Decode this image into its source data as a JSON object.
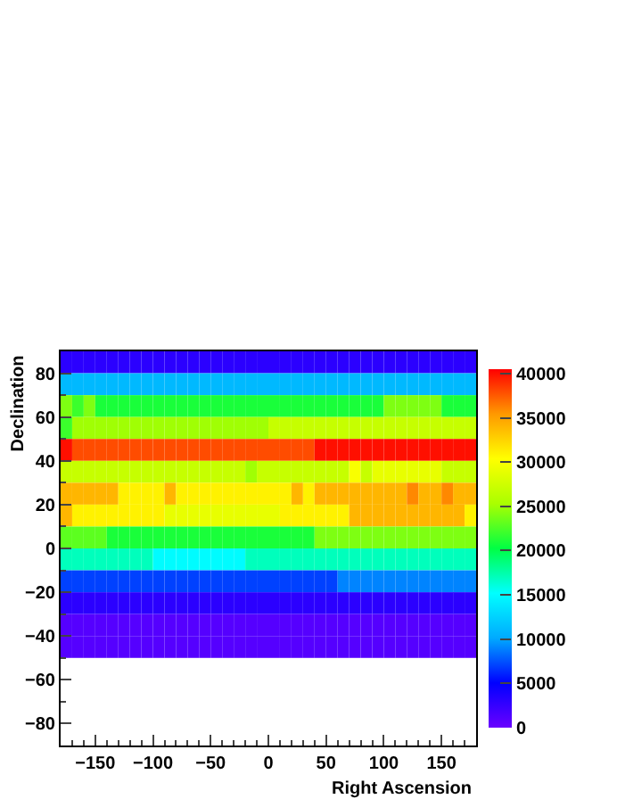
{
  "chart_data": {
    "type": "heatmap",
    "xlabel": "Right Ascension",
    "ylabel": "Declination",
    "x": [
      -175,
      -165,
      -155,
      -145,
      -135,
      -125,
      -115,
      -105,
      -95,
      -85,
      -75,
      -65,
      -55,
      -45,
      -35,
      -25,
      -15,
      -5,
      5,
      15,
      25,
      35,
      45,
      55,
      65,
      75,
      85,
      95,
      105,
      115,
      125,
      135,
      145,
      155,
      165,
      175
    ],
    "y": [
      85,
      75,
      65,
      55,
      45,
      35,
      25,
      15,
      5,
      -5,
      -15,
      -25,
      -35,
      -45
    ],
    "cells": [
      [
        3000,
        3000,
        3000,
        3000,
        3000,
        3000,
        3000,
        3000,
        3000,
        3000,
        3000,
        3000,
        3000,
        3000,
        3000,
        3000,
        3000,
        3000,
        3000,
        3000,
        3000,
        3000,
        3000,
        3000,
        3000,
        3000,
        3000,
        3000,
        3000,
        3000,
        3000,
        3000,
        3000,
        3000,
        3000,
        3000
      ],
      [
        11000,
        11000,
        11000,
        11000,
        11000,
        11000,
        11000,
        11000,
        11000,
        11000,
        11000,
        11000,
        11000,
        11000,
        11000,
        11000,
        11000,
        11000,
        11000,
        11000,
        11000,
        11000,
        11000,
        11000,
        11000,
        11000,
        11000,
        11000,
        11000,
        11000,
        11000,
        11000,
        11000,
        11000,
        11000,
        11000
      ],
      [
        24000,
        22000,
        24000,
        21000,
        21000,
        21000,
        21000,
        21000,
        21000,
        21000,
        21000,
        21000,
        21000,
        21000,
        21000,
        21000,
        21000,
        21000,
        21000,
        21000,
        21000,
        21000,
        21000,
        21000,
        21000,
        21000,
        21000,
        21000,
        24000,
        24000,
        24000,
        24000,
        24000,
        21000,
        21000,
        21000
      ],
      [
        22000,
        25000,
        25000,
        25000,
        25000,
        25000,
        25000,
        25000,
        25000,
        25000,
        25000,
        25000,
        25000,
        25000,
        25000,
        25000,
        25000,
        25000,
        27000,
        27000,
        27000,
        27000,
        27000,
        27000,
        27000,
        27000,
        27000,
        27000,
        27000,
        27000,
        27000,
        27000,
        27000,
        27000,
        27000,
        27000
      ],
      [
        40000,
        38000,
        38000,
        38000,
        38000,
        38000,
        38000,
        38000,
        38000,
        38000,
        38000,
        38000,
        38000,
        38000,
        38000,
        38000,
        38000,
        38000,
        38000,
        38000,
        38000,
        38000,
        40000,
        40000,
        40000,
        40000,
        40000,
        40000,
        40000,
        40000,
        40000,
        40000,
        40000,
        40000,
        40000,
        40000
      ],
      [
        27000,
        27000,
        27000,
        27000,
        27000,
        27000,
        27000,
        27000,
        27000,
        27000,
        27000,
        27000,
        27000,
        27000,
        27000,
        27000,
        25000,
        27000,
        27000,
        27000,
        27000,
        27000,
        27000,
        27000,
        27000,
        30000,
        27000,
        29000,
        29000,
        29000,
        29000,
        29000,
        29000,
        27000,
        27000,
        27000
      ],
      [
        34000,
        34000,
        34000,
        34000,
        34000,
        31000,
        31000,
        31000,
        31000,
        34000,
        31000,
        31000,
        31000,
        31000,
        31000,
        31000,
        31000,
        31000,
        31000,
        31000,
        34000,
        31000,
        34000,
        34000,
        34000,
        34000,
        34000,
        34000,
        34000,
        34000,
        36000,
        34000,
        34000,
        36000,
        34000,
        34000
      ],
      [
        34000,
        31000,
        31000,
        31000,
        31000,
        31000,
        31000,
        31000,
        31000,
        29000,
        29000,
        29000,
        29000,
        29000,
        29000,
        29000,
        29000,
        29000,
        29000,
        31000,
        31000,
        31000,
        31000,
        31000,
        31000,
        34000,
        34000,
        34000,
        34000,
        34000,
        34000,
        34000,
        34000,
        34000,
        34000,
        31000
      ],
      [
        23000,
        23000,
        23000,
        23000,
        21000,
        21000,
        21000,
        21000,
        21000,
        21000,
        21000,
        21000,
        21000,
        21000,
        21000,
        21000,
        21000,
        21000,
        21000,
        21000,
        21000,
        21000,
        24000,
        24000,
        24000,
        24000,
        24000,
        24000,
        24000,
        24000,
        24000,
        24000,
        24000,
        24000,
        24000,
        24000
      ],
      [
        17000,
        17000,
        17000,
        17000,
        17000,
        17000,
        17000,
        17000,
        15000,
        15000,
        15000,
        15000,
        15000,
        15000,
        15000,
        15000,
        17000,
        17000,
        17000,
        17000,
        17000,
        17000,
        17000,
        17000,
        17000,
        17000,
        17000,
        17000,
        17000,
        17000,
        17000,
        17000,
        17000,
        17000,
        17000,
        17000
      ],
      [
        7000,
        7000,
        7000,
        7000,
        7000,
        7000,
        7000,
        7000,
        7000,
        7000,
        7000,
        7000,
        7000,
        7000,
        7000,
        7000,
        7000,
        7000,
        7000,
        7000,
        7000,
        7000,
        7000,
        7000,
        9000,
        9000,
        9000,
        9000,
        9000,
        9000,
        9000,
        9000,
        9000,
        9000,
        9000,
        9000
      ],
      [
        3000,
        3000,
        3000,
        3000,
        3000,
        3000,
        3000,
        3000,
        3000,
        3000,
        3000,
        3000,
        3000,
        3000,
        3000,
        3000,
        3000,
        3000,
        3000,
        3000,
        3000,
        3000,
        3000,
        3000,
        3000,
        3000,
        3000,
        3000,
        3000,
        3000,
        3000,
        3000,
        3000,
        3000,
        3000,
        3000
      ],
      [
        1000,
        1000,
        1000,
        1000,
        1000,
        1000,
        1000,
        1000,
        1000,
        1000,
        1000,
        1000,
        1000,
        1000,
        1000,
        1000,
        1000,
        1000,
        1000,
        1000,
        1000,
        1000,
        1000,
        1000,
        1000,
        1000,
        1000,
        1000,
        1000,
        1000,
        1000,
        1000,
        1000,
        1000,
        1000,
        1000
      ],
      [
        1000,
        1000,
        1000,
        1000,
        1000,
        1000,
        1000,
        1000,
        1000,
        1000,
        1000,
        1000,
        1000,
        1000,
        1000,
        1000,
        1000,
        1000,
        1000,
        1000,
        1000,
        1000,
        1000,
        1000,
        1000,
        1000,
        1000,
        1000,
        1000,
        1000,
        1000,
        1000,
        1000,
        1000,
        1000,
        1000
      ]
    ],
    "colors": [
      "#6a00ff",
      "#0000ff",
      "#00aaff",
      "#00ffff",
      "#00ff44",
      "#aaff00",
      "#ffff00",
      "#ff9900",
      "#ff0000"
    ],
    "clim": [
      0,
      40500
    ],
    "cticks": [
      0,
      5000,
      10000,
      15000,
      20000,
      25000,
      30000,
      35000,
      40000
    ],
    "xlim": [
      -180,
      180
    ],
    "xticks": [
      -150,
      -100,
      -50,
      0,
      50,
      100,
      150
    ],
    "ylim": [
      -90,
      90
    ],
    "yticks": [
      -80,
      -60,
      -40,
      -20,
      0,
      20,
      40,
      60,
      80
    ]
  }
}
